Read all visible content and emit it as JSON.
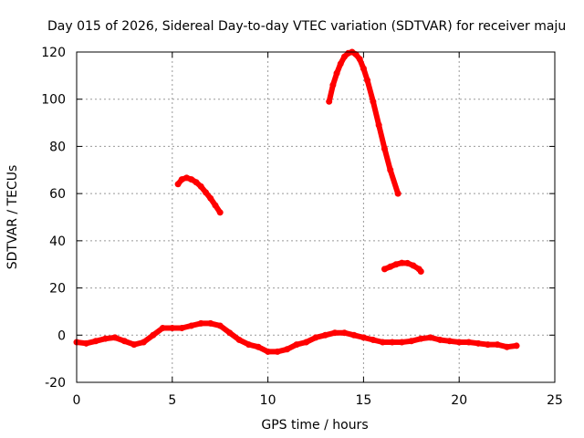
{
  "chart_data": {
    "type": "scatter",
    "title": "Day 015 of 2026, Sidereal Day-to-day VTEC variation (SDTVAR) for receiver maju",
    "xlabel": "GPS time / hours",
    "ylabel": "SDTVAR / TECUs",
    "xlim": [
      0,
      25
    ],
    "ylim": [
      -20,
      120
    ],
    "xticks": [
      0,
      5,
      10,
      15,
      20,
      25
    ],
    "yticks": [
      -20,
      0,
      20,
      40,
      60,
      80,
      100,
      120
    ],
    "grid": true,
    "marker_color": "#ff0000",
    "series": [
      {
        "name": "baseline band",
        "x": [
          0.0,
          0.5,
          1.0,
          1.5,
          2.0,
          2.5,
          3.0,
          3.5,
          4.0,
          4.5,
          5.0,
          5.5,
          6.0,
          6.5,
          7.0,
          7.5,
          8.0,
          8.5,
          9.0,
          9.5,
          10.0,
          10.5,
          11.0,
          11.5,
          12.0,
          12.5,
          13.0,
          13.5,
          14.0,
          14.5,
          15.0,
          15.5,
          16.0,
          16.5,
          17.0,
          17.5,
          18.0,
          18.5,
          19.0,
          19.5,
          20.0,
          20.5,
          21.0,
          21.5,
          22.0,
          22.5,
          23.0
        ],
        "y": [
          -3,
          -3.5,
          -2.5,
          -1.5,
          -1,
          -2.5,
          -4,
          -3,
          0,
          3,
          3,
          3,
          4,
          5,
          5,
          4,
          1,
          -2,
          -4,
          -5,
          -7,
          -7,
          -6,
          -4,
          -3,
          -1,
          0,
          1,
          1,
          0,
          -1,
          -2,
          -3,
          -3,
          -3,
          -2.5,
          -1.5,
          -1,
          -2,
          -2.5,
          -3,
          -3,
          -3.5,
          -4,
          -4,
          -5,
          -4.5
        ]
      },
      {
        "name": "arc 1",
        "x": [
          5.3,
          5.5,
          5.75,
          6.0,
          6.25,
          6.5,
          6.75,
          7.0,
          7.25,
          7.5
        ],
        "y": [
          64,
          66,
          66.7,
          66,
          64.8,
          63,
          60.5,
          58,
          55,
          52
        ]
      },
      {
        "name": "arc 2",
        "x": [
          13.2,
          13.4,
          13.6,
          13.8,
          14.0,
          14.2,
          14.4,
          14.6,
          14.8,
          15.0,
          15.2,
          15.5,
          15.8,
          16.1,
          16.4,
          16.8
        ],
        "y": [
          99,
          106,
          111,
          115,
          118,
          119.5,
          120,
          119,
          117,
          113,
          108,
          99,
          89,
          79,
          70,
          60
        ]
      },
      {
        "name": "arc 3",
        "x": [
          16.1,
          16.4,
          16.7,
          17.0,
          17.3,
          17.6,
          17.9,
          18.0
        ],
        "y": [
          28,
          29,
          30,
          30.6,
          30.5,
          29.5,
          28,
          27
        ]
      }
    ]
  }
}
